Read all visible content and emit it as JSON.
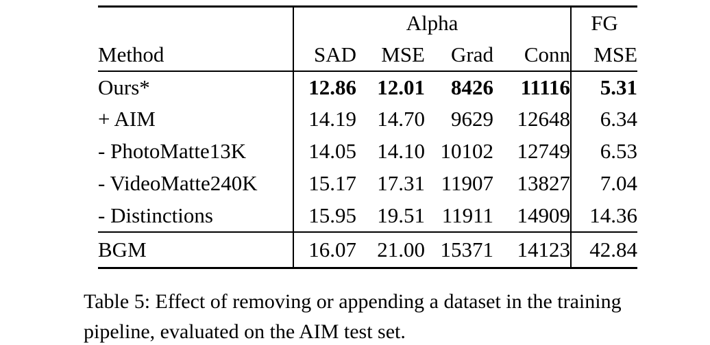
{
  "table": {
    "group_headers": {
      "alpha": "Alpha",
      "fg": "FG"
    },
    "method_header": "Method",
    "metric_headers": [
      "SAD",
      "MSE",
      "Grad",
      "Conn",
      "MSE"
    ],
    "rows": [
      {
        "method": "Ours*",
        "values": [
          "12.86",
          "12.01",
          "8426",
          "11116",
          "5.31"
        ]
      },
      {
        "method": "+ AIM",
        "values": [
          "14.19",
          "14.70",
          "9629",
          "12648",
          "6.34"
        ]
      },
      {
        "method": "- PhotoMatte13K",
        "values": [
          "14.05",
          "14.10",
          "10102",
          "12749",
          "6.53"
        ]
      },
      {
        "method": "- VideoMatte240K",
        "values": [
          "15.17",
          "17.31",
          "11907",
          "13827",
          "7.04"
        ]
      },
      {
        "method": "- Distinctions",
        "values": [
          "15.95",
          "19.51",
          "11911",
          "14909",
          "14.36"
        ]
      }
    ],
    "baseline_row": {
      "method": "BGM",
      "values": [
        "16.07",
        "21.00",
        "15371",
        "14123",
        "42.84"
      ]
    }
  },
  "caption": {
    "line1": "Table 5: Effect of removing or appending a dataset in the training",
    "line2": "pipeline, evaluated on the AIM test set."
  },
  "colors": {
    "text": "#000000",
    "background": "#ffffff",
    "rule": "#000000"
  }
}
